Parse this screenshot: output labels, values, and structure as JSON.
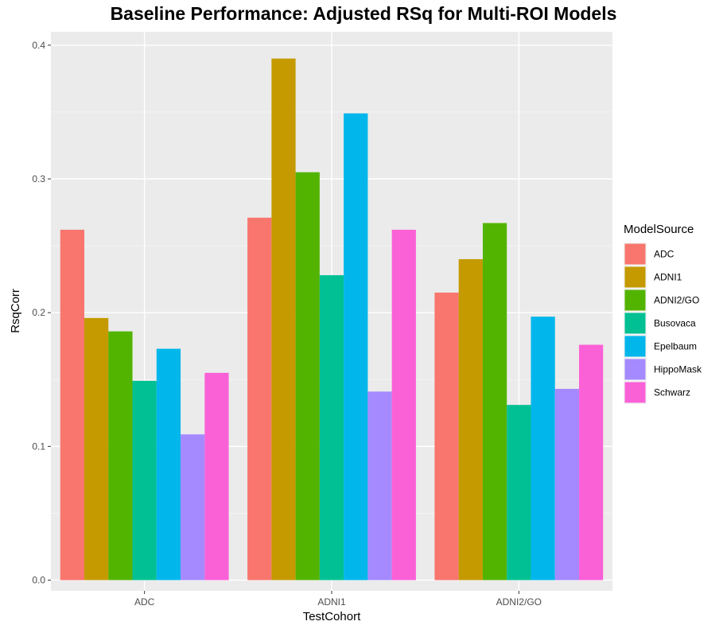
{
  "chart_data": {
    "type": "bar",
    "title": "Baseline Performance: Adjusted RSq for Multi-ROI Models",
    "xlabel": "TestCohort",
    "ylabel": "RsqCorr",
    "categories": [
      "ADC",
      "ADNI1",
      "ADNI2/GO"
    ],
    "ylim": [
      -0.008,
      0.41
    ],
    "yticks": [
      0.0,
      0.1,
      0.2,
      0.3,
      0.4
    ],
    "ytick_labels": [
      "0.0",
      "0.1",
      "0.2",
      "0.3",
      "0.4"
    ],
    "grid": true,
    "legend_title": "ModelSource",
    "legend_position": "right",
    "series": [
      {
        "name": "ADC",
        "color": "#F8766D",
        "values": [
          0.262,
          0.271,
          0.215
        ]
      },
      {
        "name": "ADNI1",
        "color": "#C49A00",
        "values": [
          0.196,
          0.39,
          0.24
        ]
      },
      {
        "name": "ADNI2/GO",
        "color": "#53B400",
        "values": [
          0.186,
          0.305,
          0.267
        ]
      },
      {
        "name": "Busovaca",
        "color": "#00C094",
        "values": [
          0.149,
          0.228,
          0.131
        ]
      },
      {
        "name": "Epelbaum",
        "color": "#00B6EB",
        "values": [
          0.173,
          0.349,
          0.197
        ]
      },
      {
        "name": "HippoMask",
        "color": "#A58AFF",
        "values": [
          0.109,
          0.141,
          0.143
        ]
      },
      {
        "name": "Schwarz",
        "color": "#FB61D7",
        "values": [
          0.155,
          0.262,
          0.176
        ]
      }
    ]
  }
}
